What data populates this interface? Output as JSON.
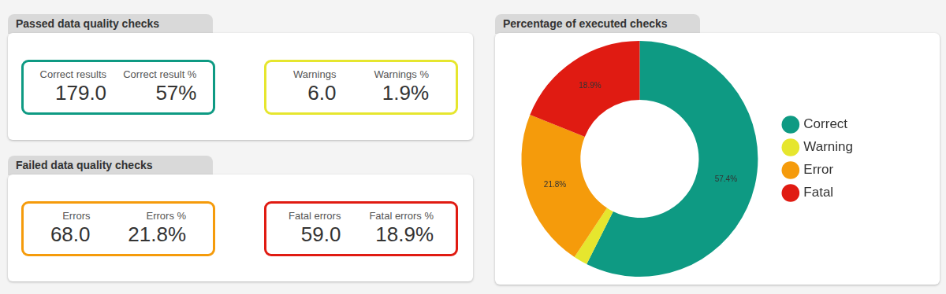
{
  "panels": [
    {
      "title": "Passed data quality checks",
      "cards": [
        {
          "color": "#0e9a83",
          "metrics": [
            {
              "label": "Correct results",
              "value": "179.0"
            },
            {
              "label": "Correct result %",
              "value": "57%"
            }
          ]
        },
        {
          "color": "#e6e62e",
          "metrics": [
            {
              "label": "Warnings",
              "value": "6.0"
            },
            {
              "label": "Warnings %",
              "value": "1.9%"
            }
          ]
        }
      ]
    },
    {
      "title": "Failed data quality checks",
      "cards": [
        {
          "color": "#f59b0b",
          "metrics": [
            {
              "label": "Errors",
              "value": "68.0"
            },
            {
              "label": "Errors %",
              "value": "21.8%"
            }
          ]
        },
        {
          "color": "#e01b12",
          "metrics": [
            {
              "label": "Fatal errors",
              "value": "59.0"
            },
            {
              "label": "Fatal errors %",
              "value": "18.9%"
            }
          ]
        }
      ]
    }
  ],
  "chart_data": {
    "type": "doughnut",
    "title": "Percentage of executed checks",
    "categories": [
      "Correct",
      "Warning",
      "Error",
      "Fatal"
    ],
    "values": [
      57.4,
      1.9,
      21.8,
      18.9
    ],
    "colors": [
      "#0e9a83",
      "#e6e62e",
      "#f59b0b",
      "#e01b12"
    ],
    "data_labels": true,
    "value_labels": [
      "57.4%",
      null,
      "21.8%",
      "18.9%"
    ],
    "legend": "right"
  }
}
